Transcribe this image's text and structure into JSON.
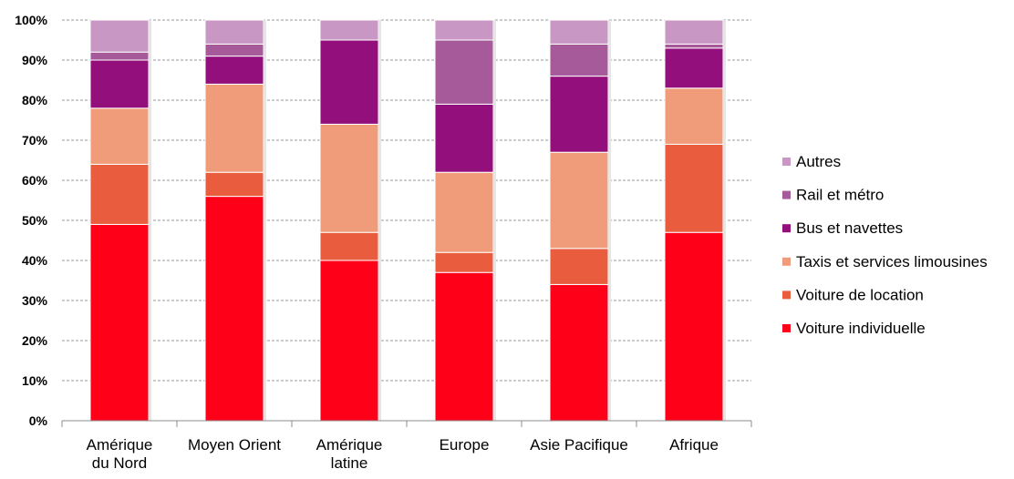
{
  "chart_data": {
    "type": "bar",
    "stacked": true,
    "normalized": true,
    "categories": [
      [
        "Amérique",
        "du Nord"
      ],
      [
        "Moyen Orient"
      ],
      [
        "Amérique",
        "latine"
      ],
      [
        "Europe"
      ],
      [
        "Asie Pacifique"
      ],
      [
        "Afrique"
      ]
    ],
    "series": [
      {
        "name": "Voiture individuelle",
        "color": "#ff0019",
        "values": [
          49,
          56,
          40,
          37,
          34,
          47
        ]
      },
      {
        "name": "Voiture de location",
        "color": "#e95c3e",
        "values": [
          15,
          6,
          7,
          5,
          9,
          22
        ]
      },
      {
        "name": "Taxis et services limousines",
        "color": "#f09c7a",
        "values": [
          14,
          22,
          27,
          20,
          24,
          14
        ]
      },
      {
        "name": "Bus et navettes",
        "color": "#930f7c",
        "values": [
          12,
          7,
          21,
          17,
          19,
          10
        ]
      },
      {
        "name": "Rail et métro",
        "color": "#a65a99",
        "values": [
          2,
          3,
          0,
          16,
          8,
          1
        ]
      },
      {
        "name": "Autres",
        "color": "#c897c4",
        "values": [
          8,
          6,
          5,
          5,
          6,
          6
        ]
      }
    ],
    "yticks": [
      "0%",
      "10%",
      "20%",
      "30%",
      "40%",
      "50%",
      "60%",
      "70%",
      "80%",
      "90%",
      "100%"
    ],
    "ylim": [
      0,
      100
    ],
    "grid": true,
    "legend_position": "right"
  }
}
